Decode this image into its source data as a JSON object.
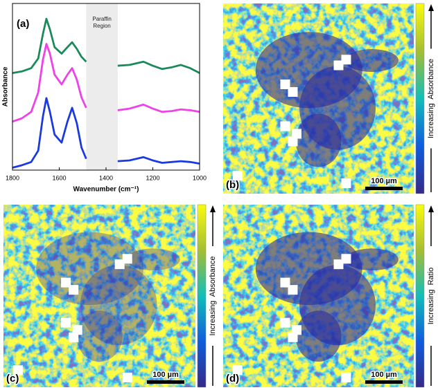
{
  "chart_data": [
    {
      "type": "line",
      "panel_label": "(a)",
      "x_label": "Wavenumber (cm⁻¹)",
      "y_label": "Absorbance",
      "annotation": "Paraffin Region",
      "band": [
        1485,
        1350
      ],
      "xlim": [
        1800,
        1000
      ],
      "xticks": [
        1800,
        1600,
        1400,
        1200,
        1000
      ],
      "ylim": [
        0,
        10.3
      ],
      "x": [
        1800,
        1760,
        1720,
        1690,
        1670,
        1655,
        1640,
        1620,
        1590,
        1565,
        1545,
        1525,
        1505,
        1485,
        1420,
        1350,
        1300,
        1240,
        1200,
        1160,
        1120,
        1080,
        1040,
        1000
      ],
      "series": [
        {
          "color": "#1a8a5a",
          "values": [
            6.0,
            6.1,
            6.3,
            6.9,
            8.4,
            9.35,
            8.7,
            7.6,
            7.2,
            7.6,
            7.9,
            7.5,
            7.0,
            6.7,
            null,
            6.45,
            6.5,
            6.7,
            6.45,
            6.25,
            6.35,
            6.5,
            6.3,
            6.0
          ]
        },
        {
          "color": "#f040e8",
          "values": [
            3.0,
            3.2,
            3.6,
            4.8,
            6.8,
            7.8,
            7.2,
            5.9,
            5.3,
            5.9,
            6.3,
            5.6,
            4.5,
            3.85,
            null,
            3.7,
            3.8,
            4.05,
            3.8,
            3.6,
            3.65,
            3.75,
            3.7,
            3.6
          ]
        },
        {
          "color": "#1a3ae0",
          "values": [
            0.15,
            0.3,
            0.5,
            1.2,
            3.3,
            4.45,
            3.6,
            2.2,
            1.7,
            3.0,
            3.85,
            2.9,
            1.4,
            0.7,
            null,
            0.55,
            0.6,
            0.8,
            0.6,
            0.45,
            0.5,
            0.55,
            0.5,
            0.4
          ]
        }
      ]
    },
    {
      "type": "heatmap",
      "panel_label": "(b)",
      "scale_bar": "100 µm",
      "colorbar_label": "Increasing  Absorbance",
      "colormap": [
        "#352a87",
        "#0f5cdd",
        "#12beb9",
        "#a5be32",
        "#f9fb0e"
      ]
    },
    {
      "type": "heatmap",
      "panel_label": "(c)",
      "scale_bar": "100 µm",
      "colorbar_label": "Increasing  Absorbance",
      "colormap": [
        "#352a87",
        "#0f5cdd",
        "#12beb9",
        "#a5be32",
        "#f9fb0e"
      ]
    },
    {
      "type": "heatmap",
      "panel_label": "(d)",
      "scale_bar": "100 µm",
      "colorbar_label": "Increasing  Ratio",
      "colormap": [
        "#352a87",
        "#0f5cdd",
        "#12beb9",
        "#a5be32",
        "#f9fb0e"
      ]
    }
  ]
}
